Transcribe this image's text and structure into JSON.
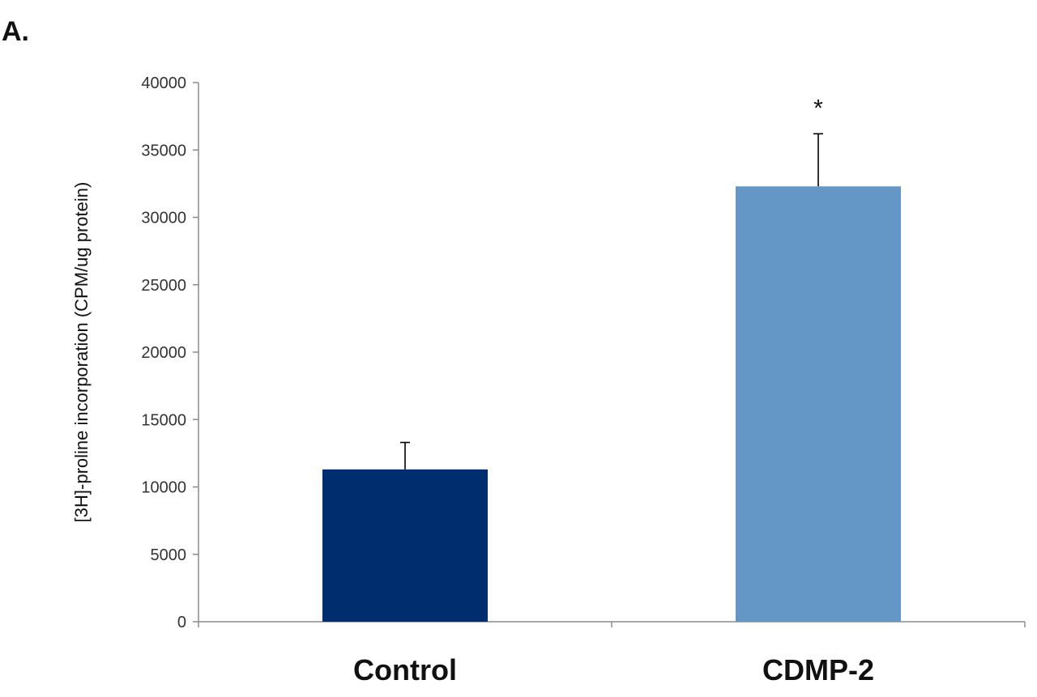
{
  "panel_label": "A.",
  "chart_data": {
    "type": "bar",
    "categories": [
      "Control",
      "CDMP-2"
    ],
    "values": [
      11300,
      32300
    ],
    "errors": [
      2000,
      3900
    ],
    "colors": [
      "#002D6E",
      "#6496C6"
    ],
    "significance": [
      "",
      "*"
    ],
    "title": "",
    "xlabel": "",
    "ylabel": "[3H]-proline incorporation (CPM/ug protein)",
    "ylim": [
      0,
      40000
    ],
    "yticks": [
      0,
      5000,
      10000,
      15000,
      20000,
      25000,
      30000,
      35000,
      40000
    ],
    "grid": false,
    "legend": "none"
  }
}
